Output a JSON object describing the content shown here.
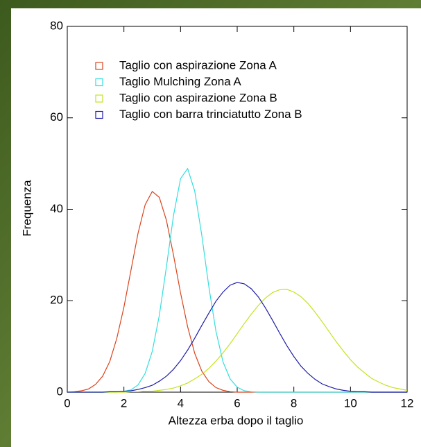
{
  "chart_data": {
    "type": "line",
    "x_label": "Altezza erba dopo il taglio",
    "y_label": "Frequenza",
    "x": [
      0,
      0.25,
      0.5,
      0.75,
      1,
      1.25,
      1.5,
      1.75,
      2,
      2.25,
      2.5,
      2.75,
      3,
      3.25,
      3.5,
      3.75,
      4,
      4.25,
      4.5,
      4.75,
      5,
      5.25,
      5.5,
      5.75,
      6,
      6.25,
      6.5,
      6.75,
      7,
      7.25,
      7.5,
      7.75,
      8,
      8.25,
      8.5,
      8.75,
      9,
      9.25,
      9.5,
      9.75,
      10,
      10.25,
      10.5,
      10.75,
      11,
      11.25,
      11.5,
      11.75,
      12
    ],
    "series": [
      {
        "name": "Taglio con aspirazione Zona A",
        "color": "#d9441c",
        "values": [
          0,
          0.1,
          0.3,
          0.7,
          1.7,
          3.5,
          6.7,
          11.8,
          18.6,
          26.7,
          34.8,
          41.0,
          43.9,
          42.6,
          37.6,
          30.0,
          21.7,
          14.3,
          8.5,
          4.6,
          2.3,
          1.0,
          0.4,
          0.1,
          0,
          0,
          0,
          0,
          0,
          0,
          0,
          0,
          0,
          0,
          0,
          0,
          0,
          0,
          0,
          0,
          0,
          0,
          0,
          0,
          0,
          0,
          0,
          0,
          0
        ]
      },
      {
        "name": "Taglio Mulching Zona A",
        "color": "#33dede",
        "values": [
          0,
          0,
          0,
          0,
          0,
          0,
          0,
          0,
          0.2,
          0.5,
          1.6,
          4.1,
          8.9,
          16.8,
          27.4,
          38.6,
          46.7,
          48.9,
          44.0,
          34.3,
          23.0,
          13.3,
          6.6,
          2.9,
          1.1,
          0.3,
          0.1,
          0,
          0,
          0,
          0,
          0,
          0,
          0,
          0,
          0,
          0,
          0,
          0,
          0,
          0,
          0,
          0,
          0,
          0,
          0,
          0,
          0,
          0
        ]
      },
      {
        "name": "Taglio con aspirazione Zona B",
        "color": "#c5e21c",
        "values": [
          0,
          0,
          0,
          0,
          0,
          0,
          0,
          0,
          0,
          0.1,
          0.1,
          0.2,
          0.2,
          0.4,
          0.6,
          0.9,
          1.4,
          2.0,
          2.9,
          3.9,
          5.2,
          6.8,
          8.6,
          10.6,
          12.8,
          15.0,
          17.1,
          19.0,
          20.6,
          21.8,
          22.4,
          22.5,
          21.9,
          20.9,
          19.4,
          17.5,
          15.4,
          13.2,
          11.0,
          9.0,
          7.1,
          5.5,
          4.2,
          3.0,
          2.2,
          1.5,
          1.0,
          0.7,
          0.4
        ]
      },
      {
        "name": "Taglio con barra trinciatutto Zona B",
        "color": "#1c1ca8",
        "values": [
          0,
          0,
          0,
          0,
          0,
          0,
          0.1,
          0.1,
          0.2,
          0.3,
          0.6,
          1.0,
          1.5,
          2.4,
          3.5,
          5.0,
          6.9,
          9.2,
          11.8,
          14.6,
          17.3,
          19.9,
          21.9,
          23.4,
          24.0,
          23.7,
          22.6,
          20.8,
          18.4,
          15.7,
          12.9,
          10.2,
          7.8,
          5.7,
          4.1,
          2.8,
          1.8,
          1.2,
          0.7,
          0.4,
          0.2,
          0.1,
          0.1,
          0,
          0,
          0,
          0,
          0,
          0
        ]
      }
    ],
    "xlim": [
      0,
      12
    ],
    "xticks": [
      0,
      2,
      4,
      6,
      8,
      10,
      12
    ],
    "ylim": [
      0,
      80
    ],
    "yticks": [
      0,
      20,
      40,
      60,
      80
    ],
    "legend": "upper-left"
  }
}
